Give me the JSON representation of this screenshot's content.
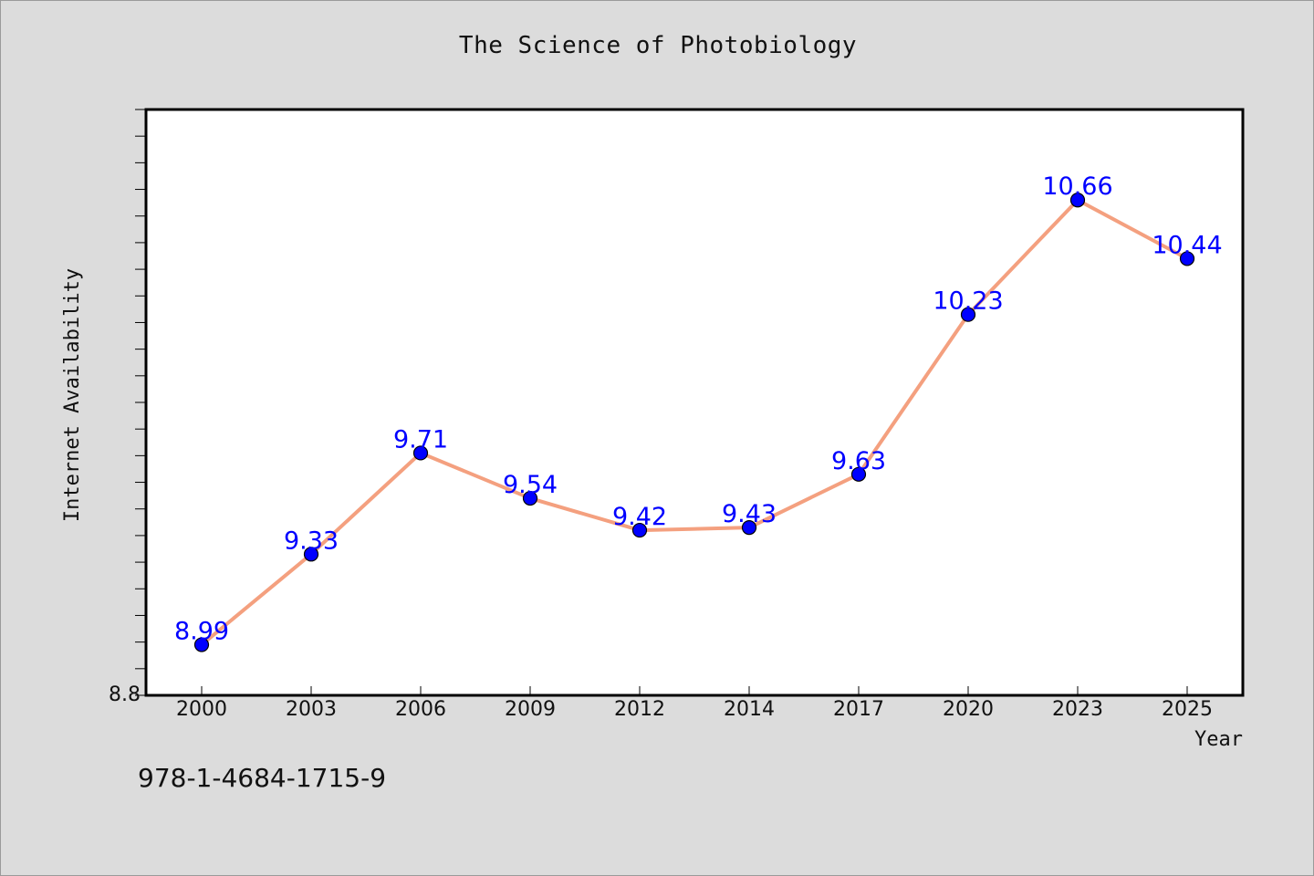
{
  "chart_data": {
    "type": "line",
    "title": "The Science of Photobiology",
    "xlabel": "Year",
    "ylabel": "Internet Availability",
    "categories": [
      "2000",
      "2003",
      "2006",
      "2009",
      "2012",
      "2014",
      "2017",
      "2020",
      "2023",
      "2025"
    ],
    "series": [
      {
        "values": [
          8.99,
          9.33,
          9.71,
          9.54,
          9.42,
          9.43,
          9.63,
          10.23,
          10.66,
          10.44
        ],
        "labels": [
          "8.99",
          "9.33",
          "9.71",
          "9.54",
          "9.42",
          "9.43",
          "9.63",
          "10.23",
          "10.66",
          "10.44"
        ],
        "line_color": "#f4a07f",
        "marker_color": "#0000ff",
        "label_color": "#0000ff"
      }
    ],
    "ylim": [
      8.8,
      11.0
    ],
    "y_tick_labels": [
      "8.8"
    ],
    "grid": false,
    "legend": "none"
  },
  "footer": {
    "note": "978-1-4684-1715-9"
  },
  "colors": {
    "background": "#dcdcdc",
    "plot_background": "#ffffff",
    "axis": "#000000"
  }
}
